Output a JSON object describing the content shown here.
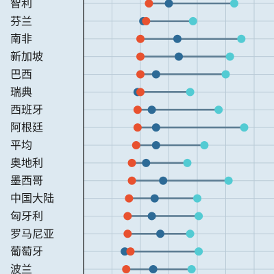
{
  "colors": {
    "background": "#dde9f1",
    "grid": "#b9cad6",
    "axis": "#222222",
    "connector": "#5d7d93",
    "series_a": "#e8512f",
    "series_b": "#2d6a96",
    "series_c": "#53cbd3"
  },
  "chart_data": {
    "type": "dot-range",
    "title": "",
    "xlabel": "",
    "ylabel": "",
    "grid": true,
    "legend": "none",
    "xlim": [
      0,
      11
    ],
    "categories": [
      "智利",
      "芬兰",
      "南非",
      "新加坡",
      "巴西",
      "瑞典",
      "西班牙",
      "阿根廷",
      "平均",
      "奥地利",
      "墨西哥",
      "中国大陆",
      "匈牙利",
      "罗马尼亚",
      "葡萄牙",
      "波兰"
    ],
    "series": [
      {
        "color_key": "series_a",
        "values": [
          2.3,
          2.2,
          2.0,
          2.0,
          2.0,
          2.0,
          1.9,
          1.9,
          1.85,
          1.7,
          1.7,
          1.6,
          1.55,
          1.55,
          1.65,
          1.5
        ]
      },
      {
        "color_key": "series_b",
        "values": [
          3.0,
          2.1,
          3.3,
          3.35,
          2.55,
          1.9,
          2.4,
          2.55,
          2.55,
          2.2,
          2.8,
          2.5,
          2.4,
          2.7,
          1.45,
          2.45
        ]
      },
      {
        "color_key": "series_c",
        "values": [
          5.3,
          3.85,
          5.55,
          5.15,
          5.0,
          3.75,
          4.75,
          5.65,
          4.25,
          3.65,
          5.1,
          4.0,
          4.05,
          3.75,
          4.05,
          3.8
        ]
      }
    ]
  }
}
